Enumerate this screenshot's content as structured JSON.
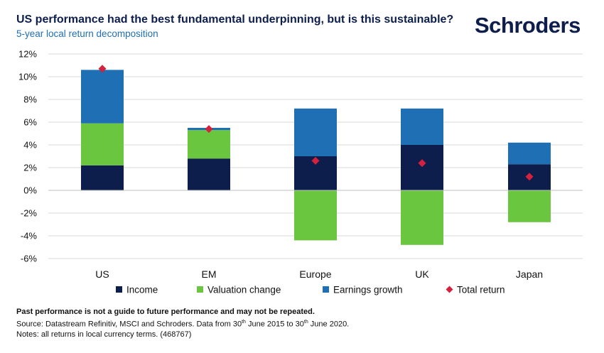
{
  "header": {
    "title": "US performance had the best fundamental underpinning, but is this sustainable?",
    "subtitle": "5-year local return decomposition",
    "logo": "Schroders"
  },
  "colors": {
    "income": "#0d1e4c",
    "valuation": "#6ac53f",
    "earnings": "#1f6fb5",
    "total": "#d4213d",
    "grid": "#d9d9d9"
  },
  "chart_data": {
    "type": "bar",
    "stacked": true,
    "categories": [
      "US",
      "EM",
      "Europe",
      "UK",
      "Japan"
    ],
    "series": [
      {
        "name": "Income",
        "values": [
          2.2,
          2.8,
          3.0,
          4.0,
          2.3
        ]
      },
      {
        "name": "Valuation change",
        "values": [
          3.7,
          2.5,
          -4.4,
          -4.8,
          -2.8
        ]
      },
      {
        "name": "Earnings growth",
        "values": [
          4.7,
          0.2,
          4.2,
          3.2,
          1.9
        ]
      }
    ],
    "total_return": {
      "name": "Total return",
      "values": [
        10.7,
        5.4,
        2.6,
        2.4,
        1.2
      ]
    },
    "ylim": [
      -6,
      12
    ],
    "yticks": [
      -6,
      -4,
      -2,
      0,
      2,
      4,
      6,
      8,
      10,
      12
    ],
    "ytick_labels": [
      "-6%",
      "-4%",
      "-2%",
      "0%",
      "2%",
      "4%",
      "6%",
      "8%",
      "10%",
      "12%"
    ],
    "legend": [
      "Income",
      "Valuation change",
      "Earnings growth",
      "Total return"
    ],
    "legend_position": "bottom",
    "grid": true
  },
  "footer": {
    "disclaimer": "Past performance is not a guide to future performance and may not be repeated.",
    "source_prefix": "Source: Datastream Refinitiv, MSCI and Schroders. Data from 30",
    "source_sup1": "th",
    "source_mid": " June 2015 to 30",
    "source_sup2": "th",
    "source_suffix": " June 2020.",
    "notes": "Notes: all returns in local currency terms. (468767)"
  }
}
